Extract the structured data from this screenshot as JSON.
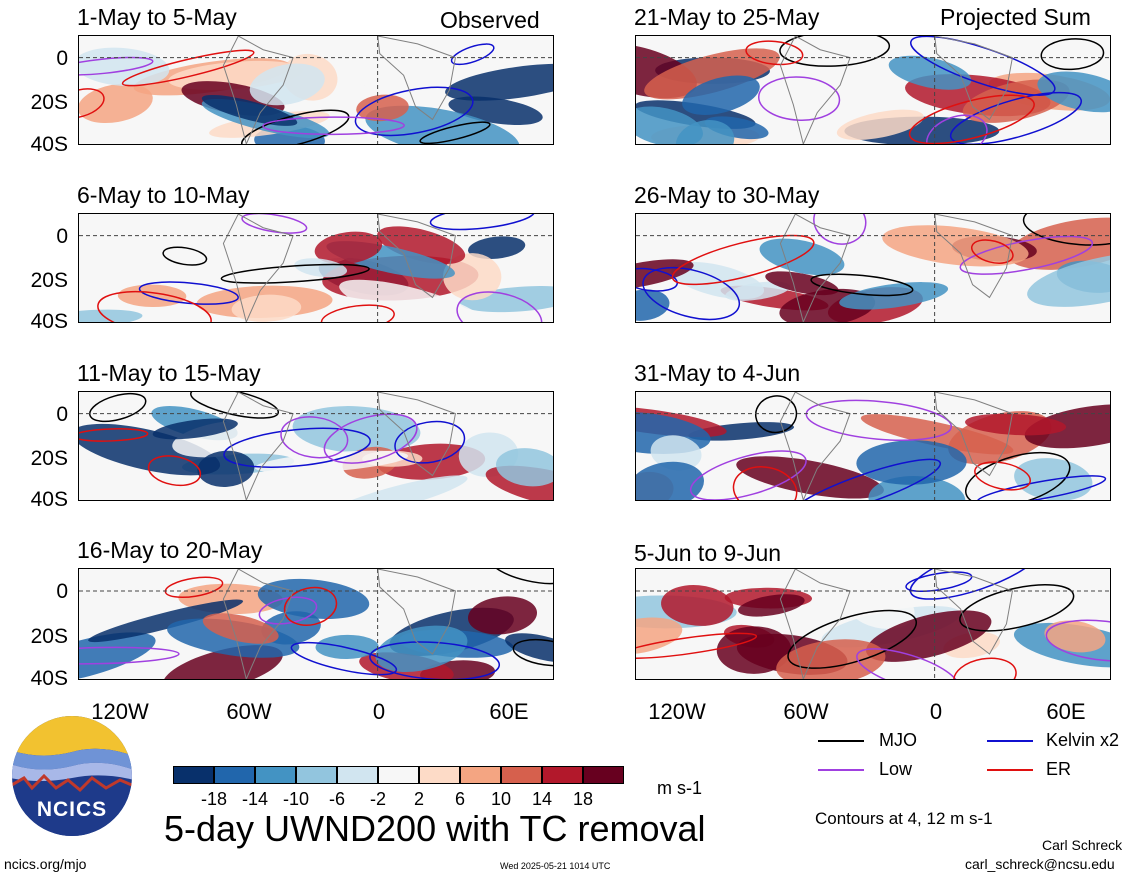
{
  "panels": [
    {
      "title": "1-May to 5-May",
      "corner": "Observed"
    },
    {
      "title": "6-May to 10-May",
      "corner": ""
    },
    {
      "title": "11-May to 15-May",
      "corner": ""
    },
    {
      "title": "16-May to 20-May",
      "corner": ""
    },
    {
      "title": "21-May to 25-May",
      "corner": "Projected Sum"
    },
    {
      "title": "26-May to 30-May",
      "corner": ""
    },
    {
      "title": "31-May to 4-Jun",
      "corner": ""
    },
    {
      "title": "5-Jun to 9-Jun",
      "corner": ""
    }
  ],
  "lat_labels": [
    "0",
    "20S",
    "40S"
  ],
  "lon_labels": [
    "120W",
    "60W",
    "0",
    "60E"
  ],
  "legend": {
    "mjo": "MJO",
    "kelvin": "Kelvin x2",
    "low": "Low",
    "er": "ER",
    "colors": {
      "mjo": "#000000",
      "kelvin": "#1010d0",
      "low": "#a040e0",
      "er": "#e01010"
    },
    "contours_note": "Contours at 4, 12 m s-1"
  },
  "colorbar": {
    "labels": [
      "-18",
      "-14",
      "-10",
      "-6",
      "-2",
      "2",
      "6",
      "10",
      "14",
      "18"
    ],
    "units": "m s-1",
    "colors": [
      "#08306b",
      "#2166ac",
      "#4393c3",
      "#92c5de",
      "#d1e5f0",
      "#f7f7f7",
      "#fddbc7",
      "#f4a582",
      "#d6604d",
      "#b2182b",
      "#67001f"
    ]
  },
  "main_title": "5-day UWND200 with TC removal",
  "logo_text": "NCICS",
  "footer": {
    "site": "ncics.org/mjo",
    "timestamp": "Wed 2025-05-21 1014 UTC",
    "author": "Carl Schreck",
    "email": "carl_schreck@ncsu.edu"
  }
}
